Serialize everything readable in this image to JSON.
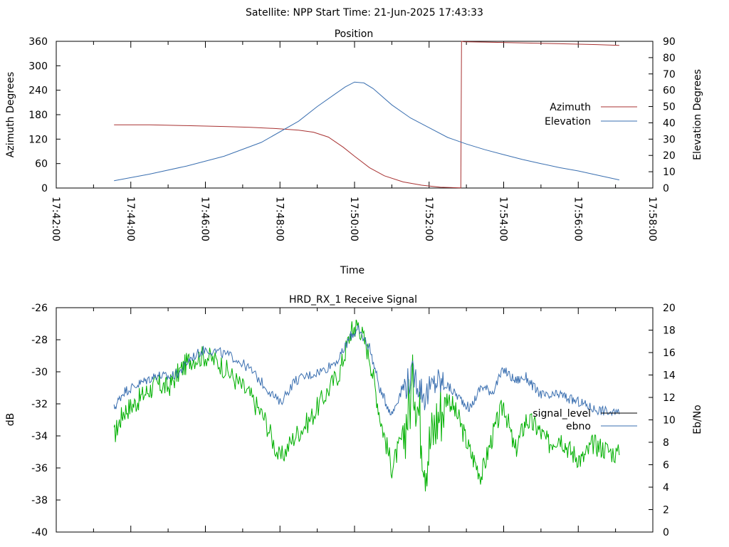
{
  "page": {
    "title": "Satellite: NPP    Start Time: 21-Jun-2025 17:43:33"
  },
  "chart_data": [
    {
      "type": "line",
      "title": "Position",
      "xlabel": "Time",
      "ylabel": "Azimuth Degrees",
      "y2label": "Elevation Degrees",
      "xlim_minutes": [
        0,
        16
      ],
      "xticks": [
        "17:42:00",
        "17:44:00",
        "17:46:00",
        "17:48:00",
        "17:50:00",
        "17:52:00",
        "17:54:00",
        "17:56:00",
        "17:58:00"
      ],
      "ylim": [
        0,
        360
      ],
      "yticks": [
        "0",
        "60",
        "120",
        "180",
        "240",
        "300",
        "360"
      ],
      "y2lim": [
        0,
        90
      ],
      "y2ticks": [
        "0",
        "10",
        "20",
        "30",
        "40",
        "50",
        "60",
        "70",
        "80",
        "90"
      ],
      "legend_position": "right",
      "grid": false,
      "series": [
        {
          "name": "Azimuth",
          "axis": "left",
          "color": "#a83232",
          "t_minutes": [
            1.55,
            2.5,
            3.5,
            4.5,
            5.2,
            5.9,
            6.5,
            6.9,
            7.3,
            7.7,
            8.0,
            8.4,
            8.8,
            9.3,
            9.8,
            10.3,
            10.85,
            10.87,
            10.93,
            11.5,
            12.5,
            13.5,
            14.5,
            15.1
          ],
          "values": [
            155,
            155,
            153,
            151,
            149,
            146,
            142,
            137,
            125,
            100,
            78,
            50,
            30,
            15,
            7,
            2,
            0.5,
            360,
            359,
            358,
            356,
            354,
            352,
            350
          ]
        },
        {
          "name": "Elevation",
          "axis": "right",
          "color": "#3a6fb0",
          "t_minutes": [
            1.55,
            2.5,
            3.5,
            4.5,
            5.5,
            6.5,
            7.0,
            7.5,
            7.75,
            8.0,
            8.25,
            8.5,
            9.0,
            9.5,
            10.0,
            10.5,
            11.0,
            11.5,
            12.0,
            12.5,
            13.0,
            13.5,
            14.0,
            14.5,
            15.1
          ],
          "values": [
            4.5,
            8.5,
            13.5,
            19.5,
            28,
            41,
            50,
            58,
            62,
            65,
            64.5,
            61,
            51,
            43,
            37,
            31,
            27,
            23.5,
            20.5,
            17.5,
            15,
            12.5,
            10.5,
            8,
            5
          ]
        }
      ]
    },
    {
      "type": "line",
      "title": "HRD_RX_1 Receive Signal",
      "xlabel": "",
      "ylabel": "dB",
      "y2label": "Eb/No",
      "xlim_minutes": [
        0,
        16
      ],
      "ylim": [
        -40,
        -26
      ],
      "yticks": [
        "-26",
        "-28",
        "-30",
        "-32",
        "-34",
        "-36",
        "-38",
        "-40"
      ],
      "y2lim": [
        0,
        20
      ],
      "y2ticks": [
        "0",
        "2",
        "4",
        "6",
        "8",
        "10",
        "12",
        "14",
        "16",
        "18",
        "20"
      ],
      "legend_position": "right",
      "grid": false,
      "series": [
        {
          "name": "signal_level",
          "axis": "left",
          "color": "#00b000",
          "t_minutes": [
            1.55,
            1.8,
            2.1,
            2.4,
            2.7,
            3.0,
            3.3,
            3.6,
            4.0,
            4.4,
            4.8,
            5.2,
            5.6,
            6.0,
            6.4,
            6.8,
            7.2,
            7.6,
            7.9,
            8.1,
            8.4,
            8.7,
            9.0,
            9.3,
            9.6,
            9.9,
            10.2,
            10.5,
            10.8,
            11.1,
            11.4,
            11.7,
            12.0,
            12.3,
            12.6,
            12.9,
            13.2,
            13.5,
            13.8,
            14.1,
            14.4,
            14.7,
            15.1
          ],
          "values": [
            -34.0,
            -32.5,
            -32.0,
            -31.3,
            -30.8,
            -31.0,
            -30.0,
            -29.2,
            -29.0,
            -29.5,
            -30.5,
            -31.5,
            -33.0,
            -35.5,
            -34.0,
            -33.0,
            -31.5,
            -30.0,
            -27.5,
            -27.0,
            -29.0,
            -33.0,
            -36.0,
            -34.0,
            -30.5,
            -35.5,
            -33.0,
            -31.5,
            -33.0,
            -35.0,
            -36.5,
            -34.0,
            -32.0,
            -35.0,
            -33.0,
            -33.5,
            -34.5,
            -34.0,
            -35.0,
            -35.5,
            -34.5,
            -34.8,
            -35.2
          ]
        },
        {
          "name": "ebno",
          "axis": "right",
          "color": "#3a6fb0",
          "t_minutes": [
            1.55,
            1.8,
            2.1,
            2.4,
            2.7,
            3.0,
            3.3,
            3.6,
            4.0,
            4.4,
            4.8,
            5.2,
            5.6,
            6.0,
            6.4,
            6.8,
            7.2,
            7.6,
            7.9,
            8.1,
            8.4,
            8.7,
            9.0,
            9.3,
            9.6,
            9.9,
            10.2,
            10.5,
            10.8,
            11.1,
            11.4,
            11.7,
            12.0,
            12.3,
            12.6,
            12.9,
            13.2,
            13.5,
            13.8,
            14.1,
            14.4,
            14.7,
            15.1
          ],
          "values": [
            11.0,
            12.5,
            13.0,
            13.5,
            14.0,
            13.8,
            14.2,
            15.5,
            16.3,
            16.0,
            15.5,
            14.5,
            13.0,
            11.5,
            13.5,
            14.0,
            14.5,
            15.5,
            17.5,
            18.0,
            16.5,
            12.5,
            10.5,
            13.0,
            14.0,
            12.0,
            13.5,
            13.0,
            12.0,
            11.0,
            13.0,
            12.5,
            14.5,
            13.5,
            13.8,
            12.5,
            12.0,
            12.3,
            11.8,
            11.5,
            11.0,
            10.8,
            10.5
          ]
        }
      ]
    }
  ]
}
